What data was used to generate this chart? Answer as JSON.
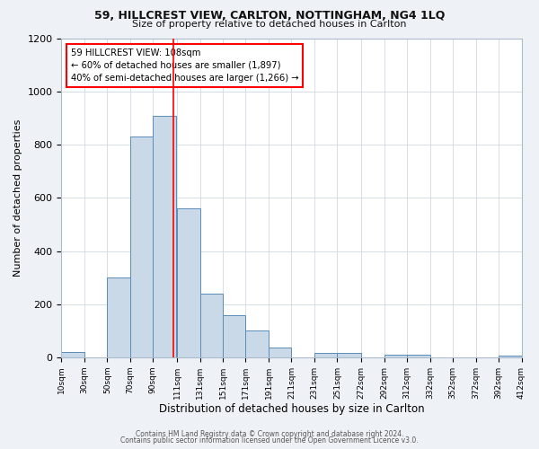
{
  "title1": "59, HILLCREST VIEW, CARLTON, NOTTINGHAM, NG4 1LQ",
  "title2": "Size of property relative to detached houses in Carlton",
  "xlabel": "Distribution of detached houses by size in Carlton",
  "ylabel": "Number of detached properties",
  "bar_left_edges": [
    10,
    30,
    50,
    70,
    90,
    111,
    131,
    151,
    171,
    191,
    211,
    231,
    251,
    272,
    292,
    312,
    332,
    352,
    372,
    392
  ],
  "bar_widths": [
    20,
    20,
    20,
    20,
    20,
    20,
    20,
    20,
    20,
    20,
    20,
    20,
    21,
    20,
    20,
    20,
    20,
    20,
    20,
    20
  ],
  "bar_heights": [
    20,
    0,
    300,
    830,
    910,
    560,
    240,
    160,
    100,
    35,
    0,
    15,
    15,
    0,
    10,
    10,
    0,
    0,
    0,
    5
  ],
  "bar_color": "#c9d9e8",
  "bar_edge_color": "#5b8db8",
  "xlim_left": 10,
  "xlim_right": 412,
  "ylim_top": 1200,
  "yticks": [
    0,
    200,
    400,
    600,
    800,
    1000,
    1200
  ],
  "xtick_labels": [
    "10sqm",
    "30sqm",
    "50sqm",
    "70sqm",
    "90sqm",
    "111sqm",
    "131sqm",
    "151sqm",
    "171sqm",
    "191sqm",
    "211sqm",
    "231sqm",
    "251sqm",
    "272sqm",
    "292sqm",
    "312sqm",
    "332sqm",
    "352sqm",
    "372sqm",
    "392sqm",
    "412sqm"
  ],
  "xtick_positions": [
    10,
    30,
    50,
    70,
    90,
    111,
    131,
    151,
    171,
    191,
    211,
    231,
    251,
    272,
    292,
    312,
    332,
    352,
    372,
    392,
    412
  ],
  "property_line_x": 108,
  "annotation_line1": "59 HILLCREST VIEW: 108sqm",
  "annotation_line2": "← 60% of detached houses are smaller (1,897)",
  "annotation_line3": "40% of semi-detached houses are larger (1,266) →",
  "footer1": "Contains HM Land Registry data © Crown copyright and database right 2024.",
  "footer2": "Contains public sector information licensed under the Open Government Licence v3.0.",
  "bg_color": "#eef2f7",
  "plot_bg_color": "#ffffff",
  "grid_color": "#d0d8e4"
}
